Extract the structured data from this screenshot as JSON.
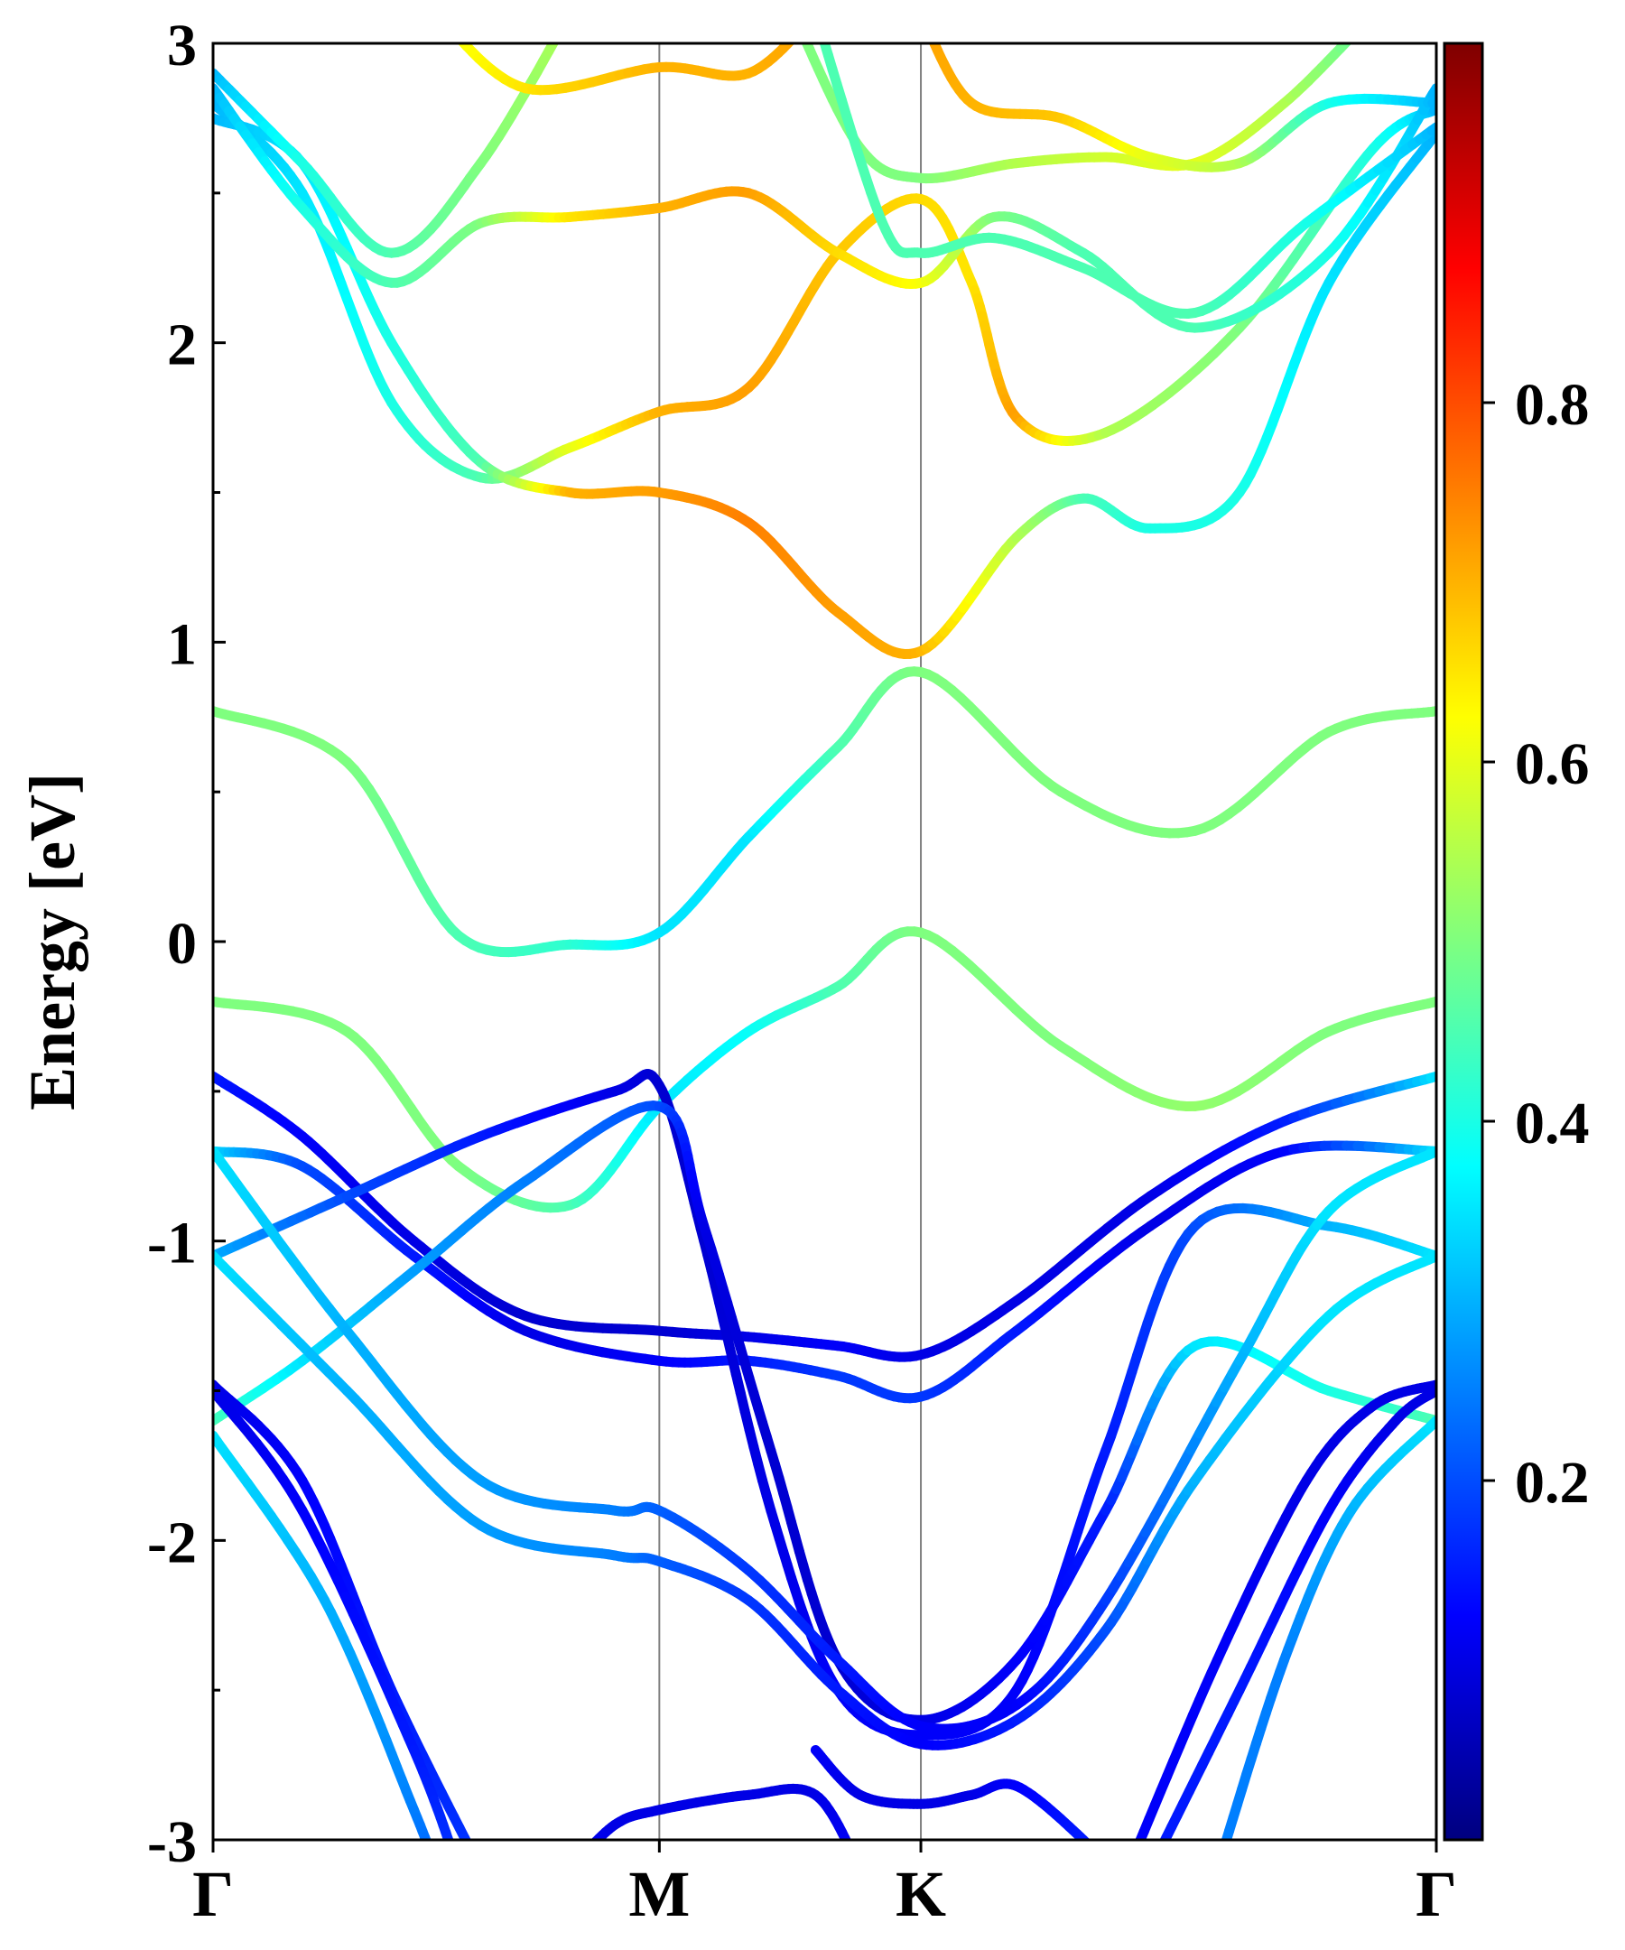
{
  "chart_data": {
    "type": "band-structure",
    "title": "",
    "xlabel": "",
    "ylabel": "Energy [eV]",
    "ylim": [
      -3,
      3
    ],
    "yticks": [
      "-3",
      "-2",
      "-1",
      "0",
      "1",
      "2",
      "3"
    ],
    "kpath": [
      "Γ",
      "M",
      "K",
      "Γ"
    ],
    "kpath_positions": [
      0,
      1,
      1.586,
      2.741
    ],
    "colorbar": {
      "colormap": "jet",
      "range": [
        0,
        1
      ],
      "ticks": [
        "0.2",
        "0.4",
        "0.6",
        "0.8"
      ]
    },
    "color_stops": [
      "#00007f",
      "#0000ff",
      "#007fff",
      "#00ffff",
      "#7fff7f",
      "#ffff00",
      "#ff7f00",
      "#ff0000",
      "#7f0000"
    ],
    "series": [
      {
        "name": "cb1",
        "points": [
          [
            0,
            0.77
          ],
          [
            0.3,
            0.6
          ],
          [
            0.55,
            0.02
          ],
          [
            0.8,
            -0.01
          ],
          [
            1,
            0.03
          ],
          [
            1.2,
            0.35
          ],
          [
            1.4,
            0.65
          ],
          [
            1.586,
            0.9
          ],
          [
            1.9,
            0.5
          ],
          [
            2.2,
            0.37
          ],
          [
            2.5,
            0.7
          ],
          [
            2.741,
            0.77
          ]
        ],
        "weights": [
          0.5,
          0.5,
          0.45,
          0.42,
          0.35,
          0.35,
          0.45,
          0.5,
          0.5,
          0.5,
          0.5,
          0.5
        ]
      },
      {
        "name": "vb1",
        "points": [
          [
            0,
            -0.2
          ],
          [
            0.3,
            -0.3
          ],
          [
            0.55,
            -0.75
          ],
          [
            0.8,
            -0.88
          ],
          [
            1,
            -0.55
          ],
          [
            1.2,
            -0.3
          ],
          [
            1.4,
            -0.15
          ],
          [
            1.586,
            0.03
          ],
          [
            1.9,
            -0.35
          ],
          [
            2.2,
            -0.55
          ],
          [
            2.5,
            -0.3
          ],
          [
            2.741,
            -0.2
          ]
        ],
        "weights": [
          0.5,
          0.5,
          0.5,
          0.45,
          0.35,
          0.38,
          0.45,
          0.5,
          0.5,
          0.52,
          0.5,
          0.5
        ]
      },
      {
        "name": "cb2",
        "points": [
          [
            0,
            2.8
          ],
          [
            0.2,
            2.5
          ],
          [
            0.4,
            1.8
          ],
          [
            0.6,
            1.55
          ],
          [
            0.8,
            1.65
          ],
          [
            1,
            1.77
          ],
          [
            1.2,
            1.85
          ],
          [
            1.4,
            2.3
          ],
          [
            1.586,
            2.48
          ],
          [
            1.7,
            2.2
          ],
          [
            1.8,
            1.75
          ],
          [
            2.0,
            1.7
          ],
          [
            2.3,
            2.05
          ],
          [
            2.6,
            2.65
          ],
          [
            2.741,
            2.78
          ]
        ],
        "weights": [
          0.3,
          0.35,
          0.4,
          0.45,
          0.6,
          0.7,
          0.72,
          0.68,
          0.66,
          0.65,
          0.72,
          0.55,
          0.5,
          0.4,
          0.3
        ]
      },
      {
        "name": "cb3",
        "points": [
          [
            0,
            2.75
          ],
          [
            0.2,
            2.6
          ],
          [
            0.4,
            2.0
          ],
          [
            0.6,
            1.6
          ],
          [
            0.8,
            1.5
          ],
          [
            1,
            1.5
          ],
          [
            1.2,
            1.4
          ],
          [
            1.4,
            1.1
          ],
          [
            1.586,
            0.97
          ],
          [
            1.8,
            1.35
          ],
          [
            1.95,
            1.48
          ],
          [
            2.1,
            1.38
          ],
          [
            2.3,
            1.5
          ],
          [
            2.5,
            2.2
          ],
          [
            2.741,
            2.7
          ]
        ],
        "weights": [
          0.3,
          0.35,
          0.4,
          0.45,
          0.7,
          0.72,
          0.75,
          0.72,
          0.7,
          0.55,
          0.45,
          0.4,
          0.4,
          0.35,
          0.3
        ]
      },
      {
        "name": "cb4",
        "points": [
          [
            0,
            2.85
          ],
          [
            0.2,
            2.45
          ],
          [
            0.4,
            2.2
          ],
          [
            0.6,
            2.4
          ],
          [
            0.8,
            2.42
          ],
          [
            1,
            2.45
          ],
          [
            1.2,
            2.5
          ],
          [
            1.4,
            2.3
          ],
          [
            1.586,
            2.2
          ],
          [
            1.75,
            2.42
          ],
          [
            1.95,
            2.3
          ],
          [
            2.2,
            2.05
          ],
          [
            2.5,
            2.3
          ],
          [
            2.741,
            2.85
          ]
        ],
        "weights": [
          0.3,
          0.4,
          0.45,
          0.5,
          0.65,
          0.7,
          0.72,
          0.66,
          0.62,
          0.5,
          0.45,
          0.45,
          0.4,
          0.3
        ]
      },
      {
        "name": "cb5",
        "points": [
          [
            0,
            2.9
          ],
          [
            0.2,
            2.6
          ],
          [
            0.4,
            2.3
          ],
          [
            0.6,
            2.6
          ],
          [
            0.8,
            3.1
          ]
        ],
        "weights": [
          0.3,
          0.4,
          0.45,
          0.5,
          0.55
        ]
      },
      {
        "name": "cb6",
        "points": [
          [
            0.5,
            3.1
          ],
          [
            0.7,
            2.85
          ],
          [
            1,
            2.92
          ],
          [
            1.2,
            2.9
          ],
          [
            1.35,
            3.1
          ]
        ],
        "weights": [
          0.6,
          0.65,
          0.7,
          0.7,
          0.72
        ]
      },
      {
        "name": "cb7",
        "points": [
          [
            1.3,
            3.1
          ],
          [
            1.45,
            2.65
          ],
          [
            1.586,
            2.55
          ],
          [
            1.8,
            2.6
          ],
          [
            2.0,
            2.62
          ],
          [
            2.2,
            2.6
          ],
          [
            2.4,
            2.8
          ],
          [
            2.6,
            3.1
          ]
        ],
        "weights": [
          0.5,
          0.5,
          0.5,
          0.55,
          0.58,
          0.6,
          0.55,
          0.45
        ]
      },
      {
        "name": "cb8",
        "points": [
          [
            1.586,
            3.1
          ],
          [
            1.7,
            2.8
          ],
          [
            1.9,
            2.75
          ],
          [
            2.1,
            2.62
          ],
          [
            2.3,
            2.6
          ],
          [
            2.5,
            2.8
          ],
          [
            2.741,
            2.8
          ]
        ],
        "weights": [
          0.72,
          0.7,
          0.68,
          0.6,
          0.55,
          0.4,
          0.3
        ]
      },
      {
        "name": "cb9",
        "points": [
          [
            1.35,
            3.1
          ],
          [
            1.5,
            2.4
          ],
          [
            1.586,
            2.3
          ],
          [
            1.75,
            2.35
          ],
          [
            1.95,
            2.25
          ],
          [
            2.2,
            2.1
          ],
          [
            2.45,
            2.4
          ],
          [
            2.741,
            2.72
          ]
        ],
        "weights": [
          0.45,
          0.45,
          0.45,
          0.45,
          0.45,
          0.45,
          0.4,
          0.3
        ]
      },
      {
        "name": "vb2",
        "points": [
          [
            0,
            -0.45
          ],
          [
            0.2,
            -0.65
          ],
          [
            0.45,
            -1.0
          ],
          [
            0.7,
            -1.25
          ],
          [
            1,
            -1.3
          ],
          [
            1.2,
            -1.32
          ],
          [
            1.4,
            -1.35
          ],
          [
            1.586,
            -1.38
          ],
          [
            1.8,
            -1.2
          ],
          [
            2.1,
            -0.85
          ],
          [
            2.4,
            -0.6
          ],
          [
            2.741,
            -0.45
          ]
        ],
        "weights": [
          0.15,
          0.12,
          0.1,
          0.08,
          0.08,
          0.1,
          0.12,
          0.1,
          0.1,
          0.1,
          0.15,
          0.35
        ]
      },
      {
        "name": "vb3",
        "points": [
          [
            0,
            -0.7
          ],
          [
            0.2,
            -0.75
          ],
          [
            0.45,
            -1.05
          ],
          [
            0.7,
            -1.3
          ],
          [
            1,
            -1.4
          ],
          [
            1.2,
            -1.4
          ],
          [
            1.4,
            -1.45
          ],
          [
            1.586,
            -1.52
          ],
          [
            1.8,
            -1.3
          ],
          [
            2.1,
            -0.95
          ],
          [
            2.4,
            -0.7
          ],
          [
            2.741,
            -0.7
          ]
        ],
        "weights": [
          0.35,
          0.2,
          0.15,
          0.1,
          0.12,
          0.15,
          0.18,
          0.18,
          0.15,
          0.1,
          0.12,
          0.35
        ]
      },
      {
        "name": "vb4",
        "points": [
          [
            0,
            -1.05
          ],
          [
            0.3,
            -0.85
          ],
          [
            0.6,
            -0.65
          ],
          [
            0.9,
            -0.5
          ],
          [
            1,
            -0.48
          ],
          [
            1.1,
            -1.0
          ],
          [
            1.25,
            -1.9
          ],
          [
            1.4,
            -2.5
          ],
          [
            1.586,
            -2.65
          ],
          [
            1.8,
            -2.5
          ],
          [
            2.0,
            -1.7
          ],
          [
            2.2,
            -0.95
          ],
          [
            2.5,
            -0.95
          ],
          [
            2.741,
            -1.05
          ]
        ],
        "weights": [
          0.3,
          0.2,
          0.15,
          0.1,
          0.08,
          0.08,
          0.1,
          0.12,
          0.12,
          0.12,
          0.15,
          0.2,
          0.3,
          0.35
        ]
      },
      {
        "name": "vb5",
        "points": [
          [
            0,
            -1.6
          ],
          [
            0.2,
            -1.4
          ],
          [
            0.45,
            -1.1
          ],
          [
            0.7,
            -0.8
          ],
          [
            1,
            -0.55
          ],
          [
            1.1,
            -0.95
          ],
          [
            1.25,
            -1.7
          ],
          [
            1.4,
            -2.4
          ],
          [
            1.586,
            -2.6
          ],
          [
            1.8,
            -2.4
          ],
          [
            2.0,
            -1.9
          ],
          [
            2.2,
            -1.35
          ],
          [
            2.5,
            -1.5
          ],
          [
            2.741,
            -1.6
          ]
        ],
        "weights": [
          0.45,
          0.35,
          0.28,
          0.25,
          0.2,
          0.1,
          0.08,
          0.08,
          0.1,
          0.12,
          0.15,
          0.35,
          0.4,
          0.45
        ]
      },
      {
        "name": "vb6",
        "points": [
          [
            0,
            -1.48
          ],
          [
            0.2,
            -1.8
          ],
          [
            0.4,
            -2.5
          ],
          [
            0.6,
            -3.1
          ]
        ],
        "weights": [
          0.1,
          0.12,
          0.15,
          0.18
        ]
      },
      {
        "name": "vb7",
        "points": [
          [
            0,
            -1.5
          ],
          [
            0.2,
            -1.9
          ],
          [
            0.45,
            -2.7
          ],
          [
            0.55,
            -3.1
          ]
        ],
        "weights": [
          0.1,
          0.12,
          0.15,
          0.18
        ]
      },
      {
        "name": "vb8",
        "points": [
          [
            0,
            -1.65
          ],
          [
            0.25,
            -2.2
          ],
          [
            0.45,
            -2.9
          ],
          [
            0.5,
            -3.1
          ]
        ],
        "weights": [
          0.35,
          0.3,
          0.25,
          0.2
        ]
      },
      {
        "name": "vb9",
        "points": [
          [
            0,
            -0.7
          ],
          [
            0.3,
            -1.3
          ],
          [
            0.6,
            -1.8
          ],
          [
            0.9,
            -1.9
          ],
          [
            1,
            -1.9
          ],
          [
            1.2,
            -2.1
          ],
          [
            1.4,
            -2.4
          ],
          [
            1.586,
            -2.62
          ],
          [
            1.8,
            -2.55
          ],
          [
            2.0,
            -2.2
          ],
          [
            2.3,
            -1.4
          ],
          [
            2.5,
            -0.9
          ],
          [
            2.741,
            -0.7
          ]
        ],
        "weights": [
          0.35,
          0.3,
          0.28,
          0.25,
          0.22,
          0.18,
          0.15,
          0.12,
          0.12,
          0.18,
          0.3,
          0.35,
          0.35
        ]
      },
      {
        "name": "vb10",
        "points": [
          [
            0,
            -1.05
          ],
          [
            0.3,
            -1.5
          ],
          [
            0.6,
            -1.95
          ],
          [
            0.9,
            -2.05
          ],
          [
            1,
            -2.07
          ],
          [
            1.2,
            -2.2
          ],
          [
            1.4,
            -2.5
          ],
          [
            1.586,
            -2.68
          ],
          [
            1.8,
            -2.6
          ],
          [
            2.0,
            -2.3
          ],
          [
            2.2,
            -1.8
          ],
          [
            2.5,
            -1.25
          ],
          [
            2.741,
            -1.05
          ]
        ],
        "weights": [
          0.35,
          0.3,
          0.28,
          0.25,
          0.22,
          0.18,
          0.15,
          0.12,
          0.15,
          0.2,
          0.3,
          0.35,
          0.35
        ]
      },
      {
        "name": "vb11",
        "points": [
          [
            0.8,
            -3.1
          ],
          [
            0.9,
            -2.95
          ],
          [
            1,
            -2.9
          ],
          [
            1.2,
            -2.85
          ],
          [
            1.35,
            -2.85
          ],
          [
            1.45,
            -3.1
          ]
        ],
        "weights": [
          0.12,
          0.1,
          0.1,
          0.1,
          0.1,
          0.12
        ]
      },
      {
        "name": "vb12",
        "points": [
          [
            1.35,
            -2.7
          ],
          [
            1.45,
            -2.85
          ],
          [
            1.586,
            -2.88
          ],
          [
            1.7,
            -2.85
          ],
          [
            1.8,
            -2.82
          ],
          [
            1.95,
            -3.0
          ],
          [
            2.0,
            -3.1
          ]
        ],
        "weights": [
          0.12,
          0.1,
          0.1,
          0.1,
          0.12,
          0.15,
          0.15
        ]
      },
      {
        "name": "vb13",
        "points": [
          [
            2.05,
            -3.1
          ],
          [
            2.25,
            -2.4
          ],
          [
            2.45,
            -1.8
          ],
          [
            2.6,
            -1.55
          ],
          [
            2.741,
            -1.48
          ]
        ],
        "weights": [
          0.12,
          0.12,
          0.1,
          0.1,
          0.1
        ]
      },
      {
        "name": "vb14",
        "points": [
          [
            2.1,
            -3.1
          ],
          [
            2.3,
            -2.5
          ],
          [
            2.5,
            -1.9
          ],
          [
            2.65,
            -1.6
          ],
          [
            2.741,
            -1.5
          ]
        ],
        "weights": [
          0.15,
          0.15,
          0.12,
          0.1,
          0.1
        ]
      },
      {
        "name": "vb15",
        "points": [
          [
            2.25,
            -3.1
          ],
          [
            2.4,
            -2.4
          ],
          [
            2.55,
            -1.9
          ],
          [
            2.741,
            -1.6
          ]
        ],
        "weights": [
          0.25,
          0.25,
          0.3,
          0.35
        ]
      }
    ]
  }
}
